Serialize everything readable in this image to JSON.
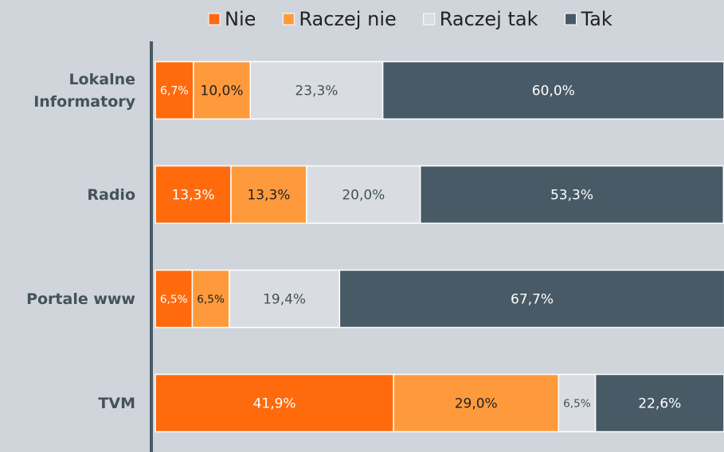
{
  "chart_data": {
    "type": "stacked_barh",
    "categories": [
      "Lokalne Informatory",
      "Radio",
      "Portale www",
      "TVM"
    ],
    "xlim": [
      0,
      100
    ],
    "legend": "top",
    "series": [
      {
        "name": "Nie",
        "color": "#ff6a0d",
        "label_color": "#ffffff",
        "values": [
          6.7,
          13.3,
          6.5,
          41.9
        ],
        "value_labels": [
          "6,7%",
          "13,3%",
          "6,5%",
          "41,9%"
        ]
      },
      {
        "name": "Raczej nie",
        "color": "#ff9a3c",
        "label_color": "#222222",
        "values": [
          10.0,
          13.3,
          6.5,
          29.0
        ],
        "value_labels": [
          "10,0%",
          "13,3%",
          "6,5%",
          "29,0%"
        ]
      },
      {
        "name": "Raczej tak",
        "color": "#d9dde1",
        "label_color": "#44525c",
        "values": [
          23.3,
          20.0,
          19.4,
          6.5
        ],
        "value_labels": [
          "23,3%",
          "20,0%",
          "19,4%",
          "6,5%"
        ]
      },
      {
        "name": "Tak",
        "color": "#475a66",
        "label_color": "#ffffff",
        "values": [
          60.0,
          53.3,
          67.7,
          22.6
        ],
        "value_labels": [
          "60,0%",
          "53,3%",
          "67,7%",
          "22,6%"
        ]
      }
    ]
  }
}
